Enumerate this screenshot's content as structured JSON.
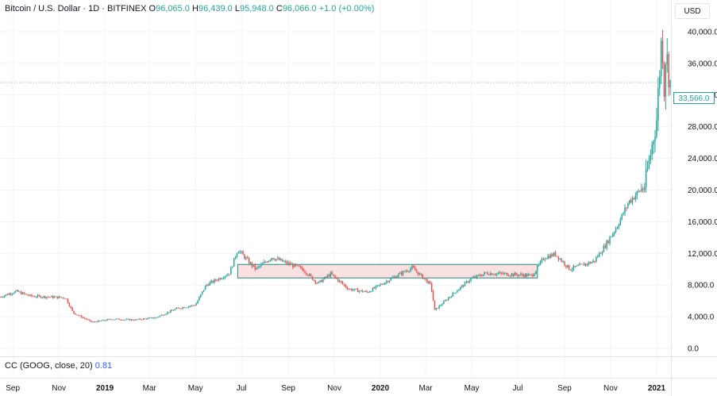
{
  "legend": {
    "symbol": "Bitcoin / U.S. Dollar · 1D · BITFINEX",
    "o_label": "O",
    "o_value": "96,065.0",
    "h_label": "H",
    "h_value": "96,439.0",
    "l_label": "L",
    "l_value": "95,948.0",
    "c_label": "C",
    "c_value": "96,066.0",
    "change": "+1.0 (+0.00%)"
  },
  "currency": "USD",
  "last_price_badge": "33,566.0",
  "indicator": {
    "label": "CC (GOOG, close, 20)",
    "value": "0.81"
  },
  "colors": {
    "up": "#26a69a",
    "down": "#ef5350",
    "zone_fill": "#f8d7d7",
    "zone_border": "#1f8a7f",
    "grid": "#f0f3fa"
  },
  "chart_data": {
    "type": "candlestick",
    "title": "Bitcoin / U.S. Dollar · 1D · BITFINEX",
    "xlabel": "",
    "ylabel": "",
    "x_range": [
      "2018-08-15",
      "2021-01-20"
    ],
    "ylim": [
      -1000,
      44000
    ],
    "y_ticks": [
      0,
      4000,
      8000,
      12000,
      16000,
      20000,
      24000,
      28000,
      32000,
      36000,
      40000
    ],
    "y_tick_labels": [
      "0.0",
      "4,000.0",
      "8,000.0",
      "12,000.0",
      "16,000.0",
      "20,000.0",
      "24,000.0",
      "28,000.0",
      "32,000.0",
      "36,000.0",
      "40,000.0"
    ],
    "x_ticks": [
      {
        "date": "2018-09-01",
        "label": "Sep",
        "bold": false
      },
      {
        "date": "2018-11-01",
        "label": "Nov",
        "bold": false
      },
      {
        "date": "2019-01-01",
        "label": "2019",
        "bold": true
      },
      {
        "date": "2019-03-01",
        "label": "Mar",
        "bold": false
      },
      {
        "date": "2019-05-01",
        "label": "May",
        "bold": false
      },
      {
        "date": "2019-07-01",
        "label": "Jul",
        "bold": false
      },
      {
        "date": "2019-09-01",
        "label": "Sep",
        "bold": false
      },
      {
        "date": "2019-11-01",
        "label": "Nov",
        "bold": false
      },
      {
        "date": "2020-01-01",
        "label": "2020",
        "bold": true
      },
      {
        "date": "2020-03-01",
        "label": "Mar",
        "bold": false
      },
      {
        "date": "2020-05-01",
        "label": "May",
        "bold": false
      },
      {
        "date": "2020-07-01",
        "label": "Jul",
        "bold": false
      },
      {
        "date": "2020-09-01",
        "label": "Sep",
        "bold": false
      },
      {
        "date": "2020-11-01",
        "label": "Nov",
        "bold": false
      },
      {
        "date": "2021-01-01",
        "label": "2021",
        "bold": true
      }
    ],
    "price_path": [
      [
        "2018-08-15",
        6500
      ],
      [
        "2018-09-05",
        7200
      ],
      [
        "2018-09-25",
        6600
      ],
      [
        "2018-10-20",
        6500
      ],
      [
        "2018-11-10",
        6400
      ],
      [
        "2018-11-20",
        4500
      ],
      [
        "2018-12-15",
        3300
      ],
      [
        "2019-01-10",
        3700
      ],
      [
        "2019-02-10",
        3600
      ],
      [
        "2019-03-10",
        3900
      ],
      [
        "2019-04-05",
        5000
      ],
      [
        "2019-05-01",
        5500
      ],
      [
        "2019-05-15",
        8000
      ],
      [
        "2019-06-15",
        9500
      ],
      [
        "2019-06-26",
        12500
      ],
      [
        "2019-07-10",
        11000
      ],
      [
        "2019-07-20",
        10000
      ],
      [
        "2019-08-10",
        11500
      ],
      [
        "2019-09-20",
        10000
      ],
      [
        "2019-10-10",
        8200
      ],
      [
        "2019-10-27",
        9400
      ],
      [
        "2019-11-20",
        7500
      ],
      [
        "2019-12-15",
        7100
      ],
      [
        "2020-01-15",
        8800
      ],
      [
        "2020-02-12",
        10200
      ],
      [
        "2020-03-08",
        8000
      ],
      [
        "2020-03-13",
        4800
      ],
      [
        "2020-04-05",
        6800
      ],
      [
        "2020-04-30",
        8800
      ],
      [
        "2020-05-20",
        9500
      ],
      [
        "2020-06-15",
        9400
      ],
      [
        "2020-07-20",
        9200
      ],
      [
        "2020-08-05",
        11500
      ],
      [
        "2020-08-20",
        11900
      ],
      [
        "2020-09-08",
        10000
      ],
      [
        "2020-10-10",
        11000
      ],
      [
        "2020-10-25",
        13000
      ],
      [
        "2020-11-10",
        15500
      ],
      [
        "2020-11-25",
        18500
      ],
      [
        "2020-12-16",
        20500
      ],
      [
        "2020-12-22",
        23500
      ],
      [
        "2021-01-01",
        29000
      ],
      [
        "2021-01-08",
        40000
      ],
      [
        "2021-01-11",
        33000
      ],
      [
        "2021-01-13",
        37000
      ],
      [
        "2021-01-16",
        36000
      ],
      [
        "2021-01-18",
        33566
      ]
    ],
    "last_price": 33566,
    "annotations": [
      {
        "type": "rectangle",
        "x0": "2019-06-26",
        "x1": "2020-07-27",
        "y0": 8900,
        "y1": 10600
      }
    ],
    "indicator": {
      "name": "CC (GOOG, close, 20)",
      "value": 0.81
    },
    "grid": true
  }
}
